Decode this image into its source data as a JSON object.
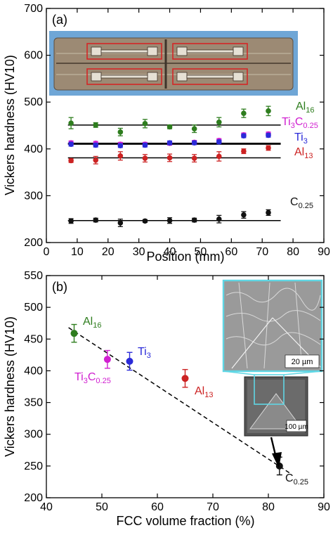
{
  "chart_data": [
    {
      "type": "scatter",
      "panel_label": "(a)",
      "xlabel": "Position (mm)",
      "ylabel": "Vickers hardness  (HV10)",
      "xlim": [
        0,
        90
      ],
      "ylim": [
        200,
        700
      ],
      "xticks": [
        "0",
        "10",
        "20",
        "30",
        "40",
        "50",
        "60",
        "70",
        "80",
        "90"
      ],
      "yticks": [
        "200",
        "300",
        "400",
        "500",
        "600",
        "700"
      ],
      "x": [
        8,
        16,
        24,
        32,
        40,
        48,
        56,
        64,
        72
      ],
      "series": [
        {
          "name": "Al16",
          "label_main": "Al",
          "label_sub": "16",
          "color": "#2e7d1e",
          "values": [
            455,
            451,
            436,
            454,
            447,
            443,
            457,
            476,
            481
          ],
          "errors": [
            12,
            5,
            8,
            9,
            4,
            8,
            10,
            9,
            10
          ],
          "mean": 451
        },
        {
          "name": "Ti3C0.25",
          "label_main": "Ti",
          "label_sub": "3",
          "label_main2": "C",
          "label_sub2": "0.25",
          "color": "#d020d0",
          "values": [
            413,
            412,
            410,
            410,
            412,
            414,
            418,
            430,
            432
          ],
          "errors": [
            4,
            4,
            4,
            4,
            4,
            4,
            4,
            4,
            4
          ],
          "mean": 412
        },
        {
          "name": "Ti3",
          "label_main": "Ti",
          "label_sub": "3",
          "color": "#2a2ad8",
          "values": [
            410,
            408,
            407,
            408,
            413,
            413,
            415,
            428,
            429
          ],
          "errors": [
            4,
            4,
            4,
            4,
            4,
            4,
            4,
            4,
            4
          ],
          "mean": 410
        },
        {
          "name": "Al13",
          "label_main": "Al",
          "label_sub": "13",
          "color": "#cc2222",
          "values": [
            375,
            376,
            385,
            380,
            381,
            380,
            384,
            395,
            402
          ],
          "errors": [
            4,
            8,
            9,
            8,
            8,
            8,
            10,
            5,
            5
          ],
          "mean": 381
        },
        {
          "name": "C0.25",
          "label_main": "C",
          "label_sub": "0.25",
          "color": "#111111",
          "values": [
            246,
            248,
            242,
            246,
            247,
            248,
            250,
            259,
            264
          ],
          "errors": [
            5,
            4,
            8,
            3,
            6,
            4,
            8,
            7,
            6
          ],
          "mean": 247
        }
      ],
      "reference_line_x": [
        7,
        76
      ],
      "grid": false,
      "inset": "photo of specimen plate with four tensile-bar outlines"
    },
    {
      "type": "scatter",
      "panel_label": "(b)",
      "xlabel": "FCC volume fraction  (%)",
      "ylabel": "Vickers hardness  (HV10)",
      "xlim": [
        40,
        90
      ],
      "ylim": [
        200,
        550
      ],
      "xticks": [
        "40",
        "50",
        "60",
        "70",
        "80",
        "90"
      ],
      "yticks": [
        "200",
        "250",
        "300",
        "350",
        "400",
        "450",
        "500",
        "550"
      ],
      "points": [
        {
          "name": "Al16",
          "label_main": "Al",
          "label_sub": "16",
          "x": 45,
          "y": 459,
          "err": 14,
          "color": "#2e7d1e"
        },
        {
          "name": "Ti3C0.25",
          "label_main": "Ti",
          "label_sub": "3",
          "label_main2": "C",
          "label_sub2": "0.25",
          "x": 51,
          "y": 418,
          "err": 14,
          "color": "#d020d0"
        },
        {
          "name": "Ti3",
          "label_main": "Ti",
          "label_sub": "3",
          "x": 55,
          "y": 415,
          "err": 14,
          "color": "#2a2ad8"
        },
        {
          "name": "Al13",
          "label_main": "Al",
          "label_sub": "13",
          "x": 65,
          "y": 388,
          "err": 14,
          "color": "#cc2222"
        },
        {
          "name": "C0.25",
          "label_main": "C",
          "label_sub": "0.25",
          "x": 82,
          "y": 250,
          "err": 14,
          "color": "#111111"
        }
      ],
      "trend_line": {
        "x": [
          44,
          84
        ],
        "y": [
          468,
          238
        ]
      },
      "grid": false,
      "inset": "micrographs of indentation with scale bars",
      "inset_scale_small": "20 µm",
      "inset_scale_large": "100 µm"
    }
  ]
}
